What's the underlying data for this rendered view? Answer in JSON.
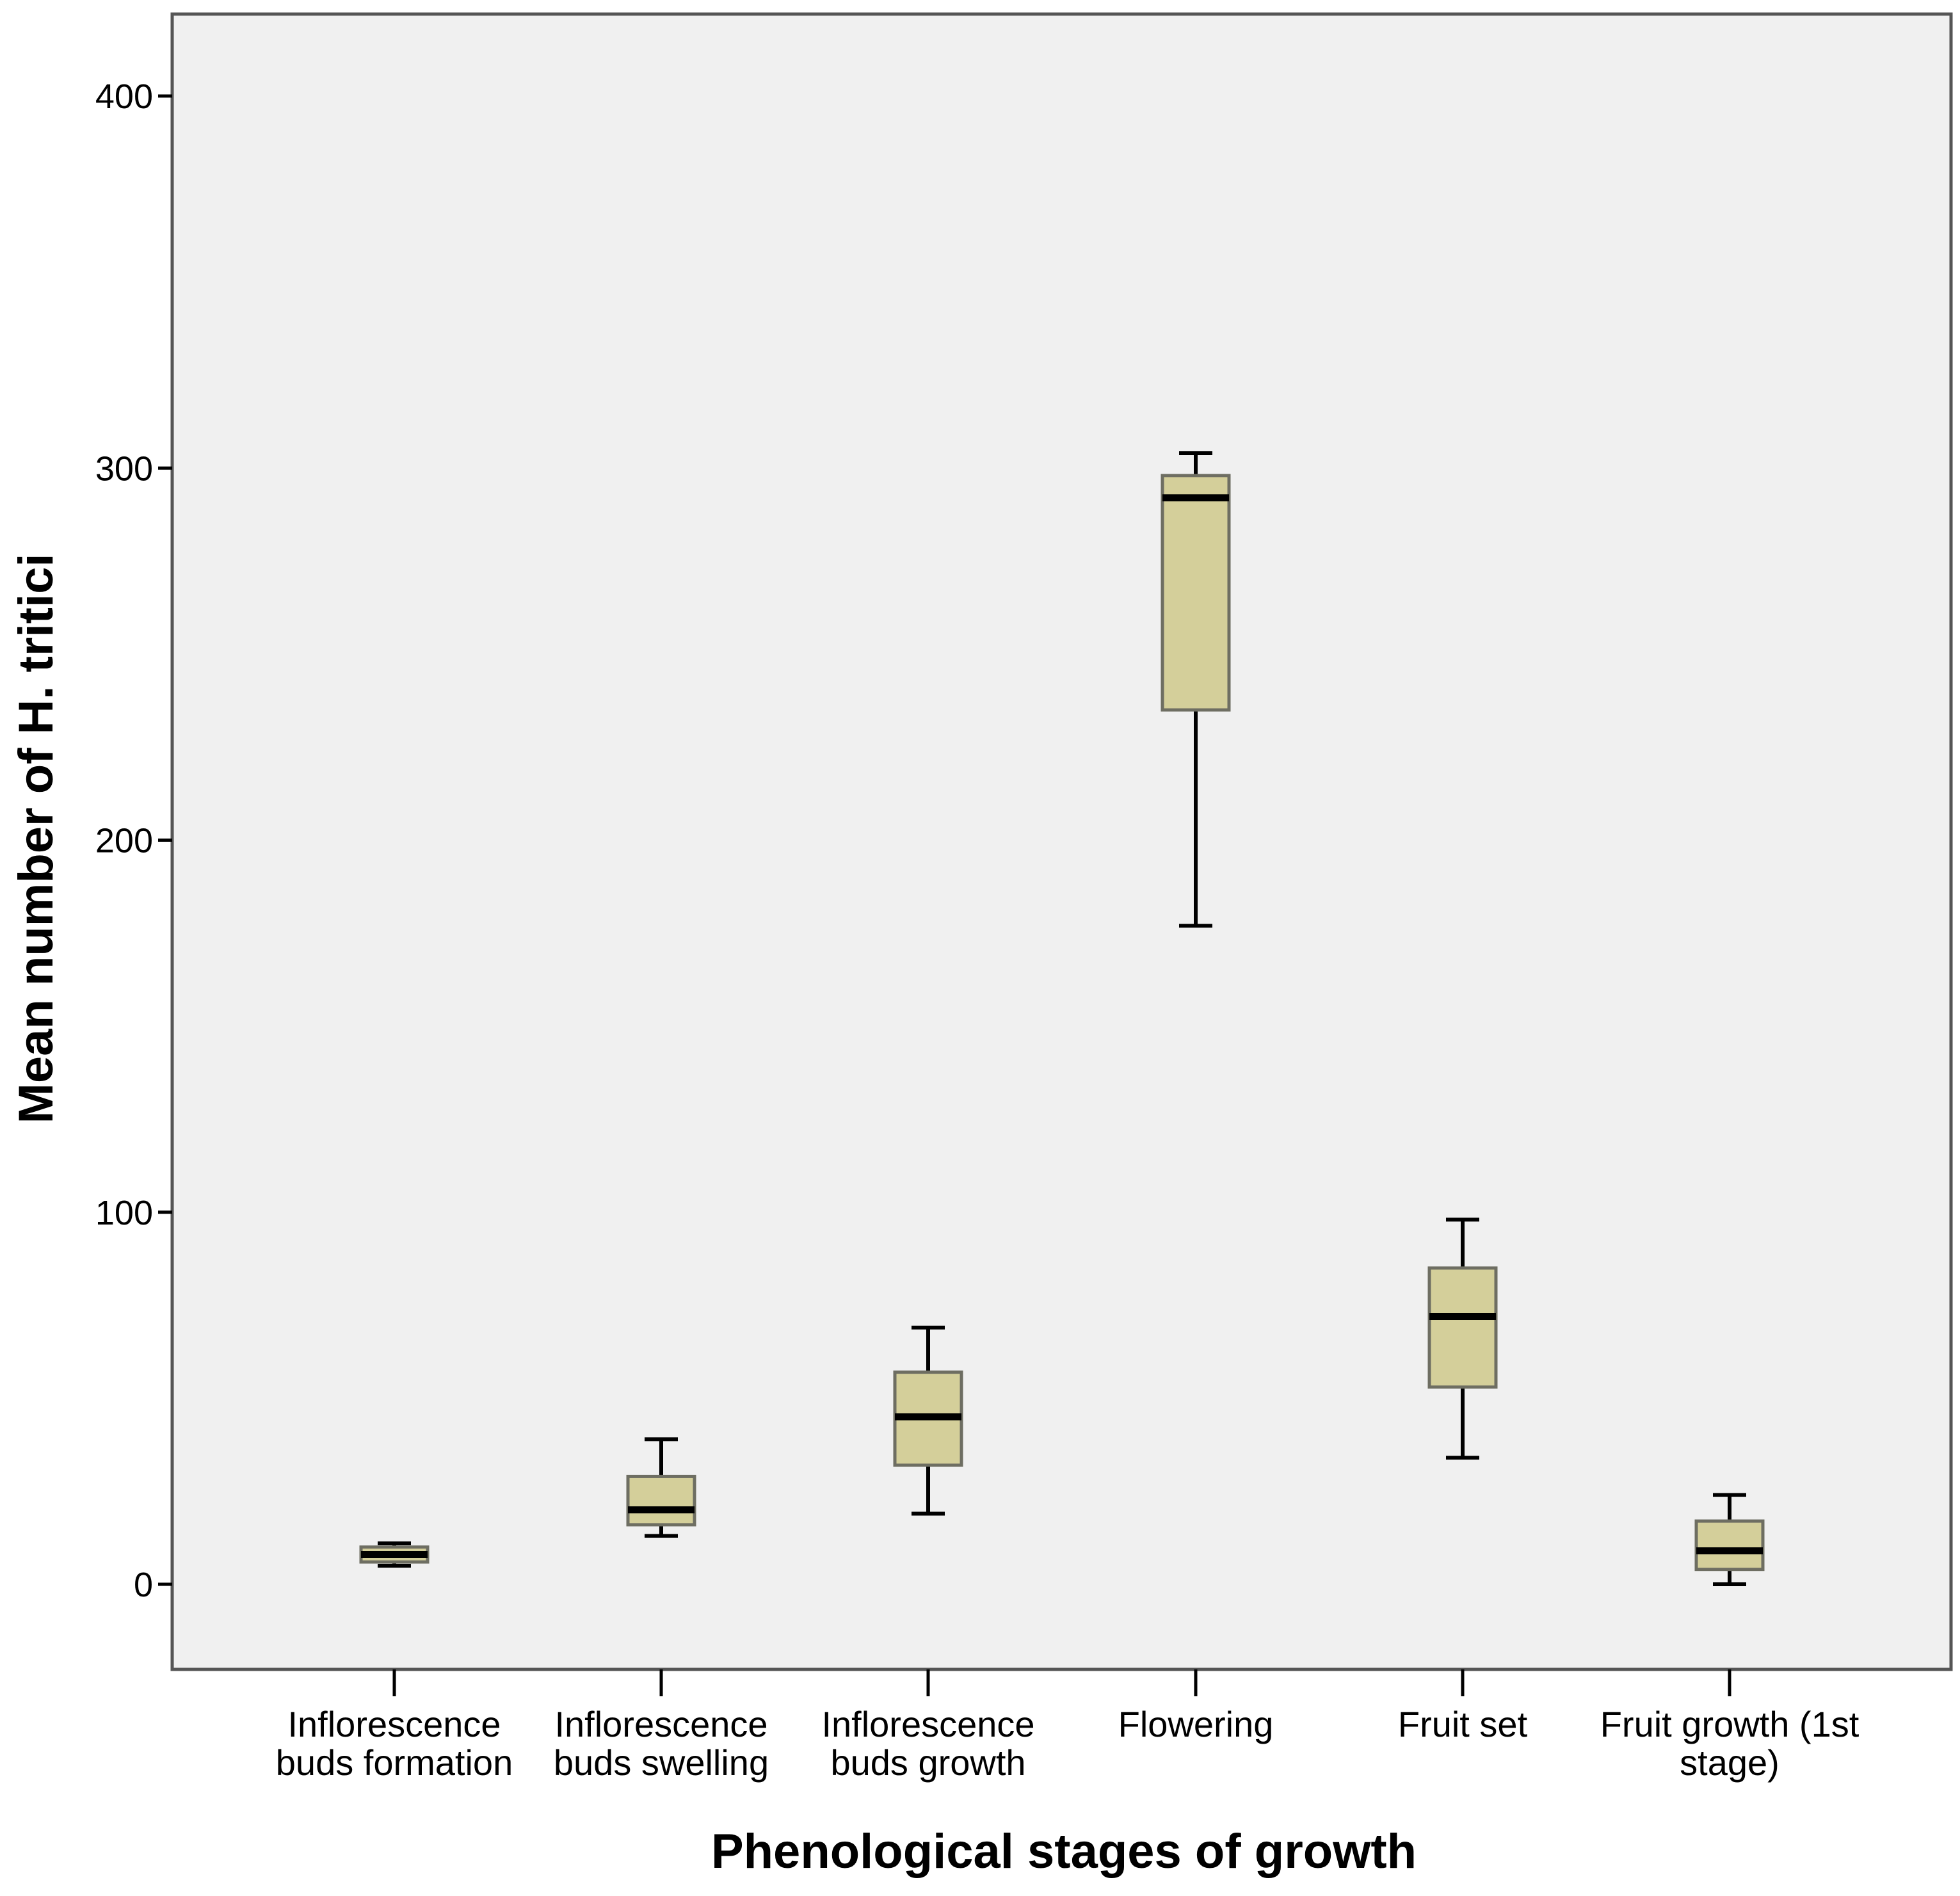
{
  "chart_data": {
    "type": "box",
    "xlabel": "Phenological stages of growth",
    "ylabel": "Mean number of H. tritici",
    "ylim": [
      -22,
      422
    ],
    "yticks": [
      0,
      100,
      200,
      300,
      400
    ],
    "grid": false,
    "legend": "none",
    "colors": {
      "box_fill": "#D4CF9A",
      "box_stroke": "#6E6E62",
      "median": "#000000",
      "plot_background": "#F0F0F0"
    },
    "categories": [
      [
        "Inflorescence",
        "buds formation"
      ],
      [
        "Inflorescence",
        "buds swelling"
      ],
      [
        "Inflorescence",
        "buds growth"
      ],
      [
        "Flowering"
      ],
      [
        "Fruit set"
      ],
      [
        "Fruit growth (1st",
        "stage)"
      ]
    ],
    "boxes": [
      {
        "whisker_low": 5,
        "q1": 6,
        "median": 8,
        "q3": 10,
        "whisker_high": 11
      },
      {
        "whisker_low": 13,
        "q1": 16,
        "median": 20,
        "q3": 29,
        "whisker_high": 39
      },
      {
        "whisker_low": 19,
        "q1": 32,
        "median": 45,
        "q3": 57,
        "whisker_high": 69
      },
      {
        "whisker_low": 177,
        "q1": 235,
        "median": 292,
        "q3": 298,
        "whisker_high": 304
      },
      {
        "whisker_low": 34,
        "q1": 53,
        "median": 72,
        "q3": 85,
        "whisker_high": 98
      },
      {
        "whisker_low": 0,
        "q1": 4,
        "median": 9,
        "q3": 17,
        "whisker_high": 24
      }
    ]
  }
}
